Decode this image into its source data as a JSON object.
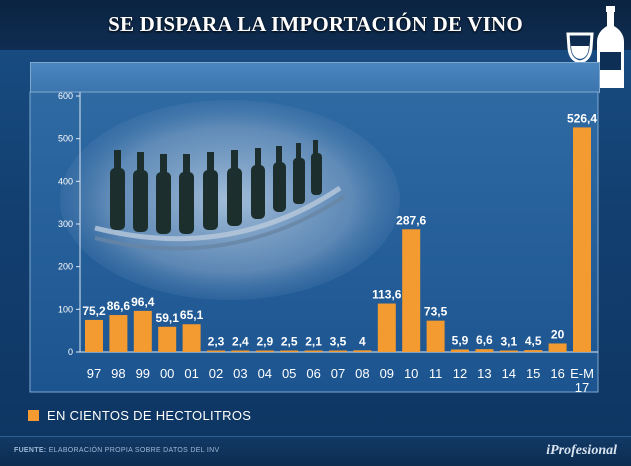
{
  "header": {
    "title": "SE DISPARA LA IMPORTACIÓN DE VINO"
  },
  "legend": {
    "label": "EN CIENTOS DE HECTOLITROS"
  },
  "footer": {
    "source_label": "FUENTE:",
    "source_text": "ELABORACIÓN PROPIA SOBRE DATOS DEL INV",
    "brand": "iProfesional"
  },
  "colors": {
    "bar": "#f39a30",
    "background": "#1a4f86",
    "text": "#ffffff"
  },
  "chart_data": {
    "type": "bar",
    "title": "SE DISPARA LA IMPORTACIÓN DE VINO",
    "xlabel": "",
    "ylabel": "",
    "ylim": [
      0,
      600
    ],
    "yticks": [
      0,
      100,
      200,
      300,
      400,
      500,
      600
    ],
    "categories": [
      "97",
      "98",
      "99",
      "00",
      "01",
      "02",
      "03",
      "04",
      "05",
      "06",
      "07",
      "08",
      "09",
      "10",
      "11",
      "12",
      "13",
      "14",
      "15",
      "16",
      "E-M 17"
    ],
    "values": [
      75.2,
      86.6,
      96.4,
      59.1,
      65.1,
      2.3,
      2.4,
      2.9,
      2.5,
      2.1,
      3.5,
      4,
      113.6,
      287.6,
      73.5,
      5.9,
      6.6,
      3.1,
      4.5,
      20,
      526.4
    ],
    "value_labels": [
      "75,2",
      "86,6",
      "96,4",
      "59,1",
      "65,1",
      "2,3",
      "2,4",
      "2,9",
      "2,5",
      "2,1",
      "3,5",
      "4",
      "113,6",
      "287,6",
      "73,5",
      "5,9",
      "6,6",
      "3,1",
      "4,5",
      "20",
      "526,4"
    ],
    "series_name": "EN CIENTOS DE HECTOLITROS",
    "grid": false,
    "legend_position": "bottom-left"
  }
}
